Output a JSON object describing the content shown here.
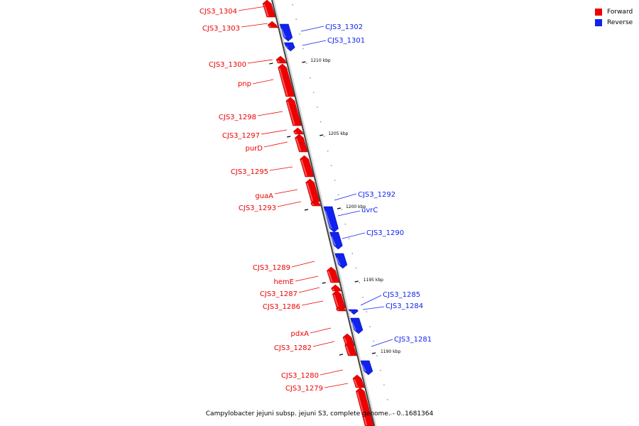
{
  "legend": {
    "forward_label": "Forward",
    "reverse_label": "Reverse",
    "forward_color": "#ee0000",
    "reverse_color": "#1122ee"
  },
  "footer": "Campylobacter jejuni subsp. jejuni S3, complete genome. - 0..1681364",
  "axis": {
    "tick_labels": [
      "1210 kbp",
      "1205 kbp",
      "1200 kbp",
      "1195 kbp",
      "1190 kbp"
    ]
  },
  "genes": [
    {
      "label": "CJS3_1304",
      "strand": "forward"
    },
    {
      "label": "CJS3_1303",
      "strand": "forward"
    },
    {
      "label": "CJS3_1302",
      "strand": "reverse"
    },
    {
      "label": "CJS3_1301",
      "strand": "reverse"
    },
    {
      "label": "CJS3_1300",
      "strand": "forward"
    },
    {
      "label": "pnp",
      "strand": "forward"
    },
    {
      "label": "CJS3_1298",
      "strand": "forward"
    },
    {
      "label": "CJS3_1297",
      "strand": "forward"
    },
    {
      "label": "purD",
      "strand": "forward"
    },
    {
      "label": "CJS3_1295",
      "strand": "forward"
    },
    {
      "label": "guaA",
      "strand": "forward"
    },
    {
      "label": "CJS3_1293",
      "strand": "forward"
    },
    {
      "label": "CJS3_1292",
      "strand": "reverse"
    },
    {
      "label": "uvrC",
      "strand": "reverse"
    },
    {
      "label": "CJS3_1290",
      "strand": "reverse"
    },
    {
      "label": "CJS3_1289",
      "strand": "forward"
    },
    {
      "label": "hemE",
      "strand": "forward"
    },
    {
      "label": "CJS3_1287",
      "strand": "forward"
    },
    {
      "label": "CJS3_1286",
      "strand": "forward"
    },
    {
      "label": "CJS3_1285",
      "strand": "reverse"
    },
    {
      "label": "CJS3_1284",
      "strand": "reverse"
    },
    {
      "label": "pdxA",
      "strand": "forward"
    },
    {
      "label": "CJS3_1282",
      "strand": "forward"
    },
    {
      "label": "CJS3_1281",
      "strand": "reverse"
    },
    {
      "label": "CJS3_1280",
      "strand": "forward"
    },
    {
      "label": "CJS3_1279",
      "strand": "forward"
    }
  ]
}
